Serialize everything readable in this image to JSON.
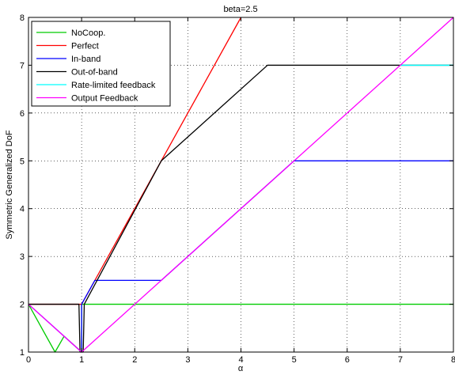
{
  "chart_data": {
    "type": "line",
    "title": "beta=2.5",
    "xlabel": "α",
    "ylabel": "Symmetric Generalized DoF",
    "xlim": [
      0,
      8
    ],
    "ylim": [
      1,
      8
    ],
    "xticks": [
      "0",
      "1",
      "2",
      "3",
      "4",
      "5",
      "6",
      "7",
      "8"
    ],
    "yticks": [
      "1",
      "2",
      "3",
      "4",
      "5",
      "6",
      "7",
      "8"
    ],
    "grid": true,
    "legend_position": "top-left",
    "series": [
      {
        "name": "NoCoop.",
        "color": "#00cc00",
        "x": [
          0,
          0.5,
          0.67,
          1.0,
          1.0,
          1.5,
          2.0,
          8
        ],
        "y": [
          2,
          1,
          1.33,
          1.0,
          2.0,
          2.0,
          2.0,
          2.0
        ]
      },
      {
        "name": "Perfect",
        "color": "#ff0000",
        "x": [
          0,
          1.0,
          1.0,
          2.5,
          3.0,
          4.0
        ],
        "y": [
          2,
          2,
          2.0,
          5.0,
          6.0,
          8.0
        ]
      },
      {
        "name": "In-band",
        "color": "#0000ff",
        "x": [
          0,
          0.5,
          1.0,
          1.0,
          1.25,
          2.5,
          5.0,
          8
        ],
        "y": [
          2,
          1.5,
          1.0,
          2.0,
          2.5,
          2.5,
          5.0,
          5.0
        ]
      },
      {
        "name": "Out-of-band",
        "color": "#000000",
        "x": [
          0,
          0.95,
          0.97,
          1.0,
          1.03,
          1.05,
          2.5,
          4.5,
          8
        ],
        "y": [
          2,
          2,
          1.0,
          1.0,
          1.0,
          2.0,
          5.0,
          7.0,
          7.0
        ]
      },
      {
        "name": "Rate-limited feedback",
        "color": "#00ffff",
        "x": [
          7.0,
          8
        ],
        "y": [
          7.0,
          7.0
        ]
      },
      {
        "name": "Output Feedback",
        "color": "#ff00ff",
        "x": [
          0,
          1.0,
          8
        ],
        "y": [
          2,
          1,
          8
        ]
      }
    ]
  }
}
